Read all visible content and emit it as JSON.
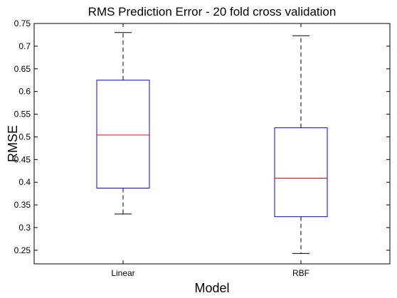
{
  "chart_data": {
    "type": "boxplot",
    "title": "RMS Prediction Error - 20 fold cross validation",
    "xlabel": "Model",
    "ylabel": "RMSE",
    "categories": [
      "Linear",
      "RBF"
    ],
    "boxes": [
      {
        "category": "Linear",
        "whisker_low": 0.33,
        "q1": 0.387,
        "median": 0.504,
        "q3": 0.625,
        "whisker_high": 0.73
      },
      {
        "category": "RBF",
        "whisker_low": 0.243,
        "q1": 0.324,
        "median": 0.409,
        "q3": 0.52,
        "whisker_high": 0.723
      }
    ],
    "ylim": [
      0.22,
      0.75
    ],
    "yticks": [
      0.25,
      0.3,
      0.35,
      0.4,
      0.45,
      0.5,
      0.55,
      0.6,
      0.65,
      0.7,
      0.75
    ],
    "ytick_labels": [
      "0.25",
      "0.3",
      "0.35",
      "0.4",
      "0.45",
      "0.5",
      "0.55",
      "0.6",
      "0.65",
      "0.7",
      "0.75"
    ],
    "grid": false,
    "colors": {
      "box": "#0000ff",
      "median": "#ff0000",
      "whisker": "#000000",
      "axes": "#000000"
    }
  }
}
